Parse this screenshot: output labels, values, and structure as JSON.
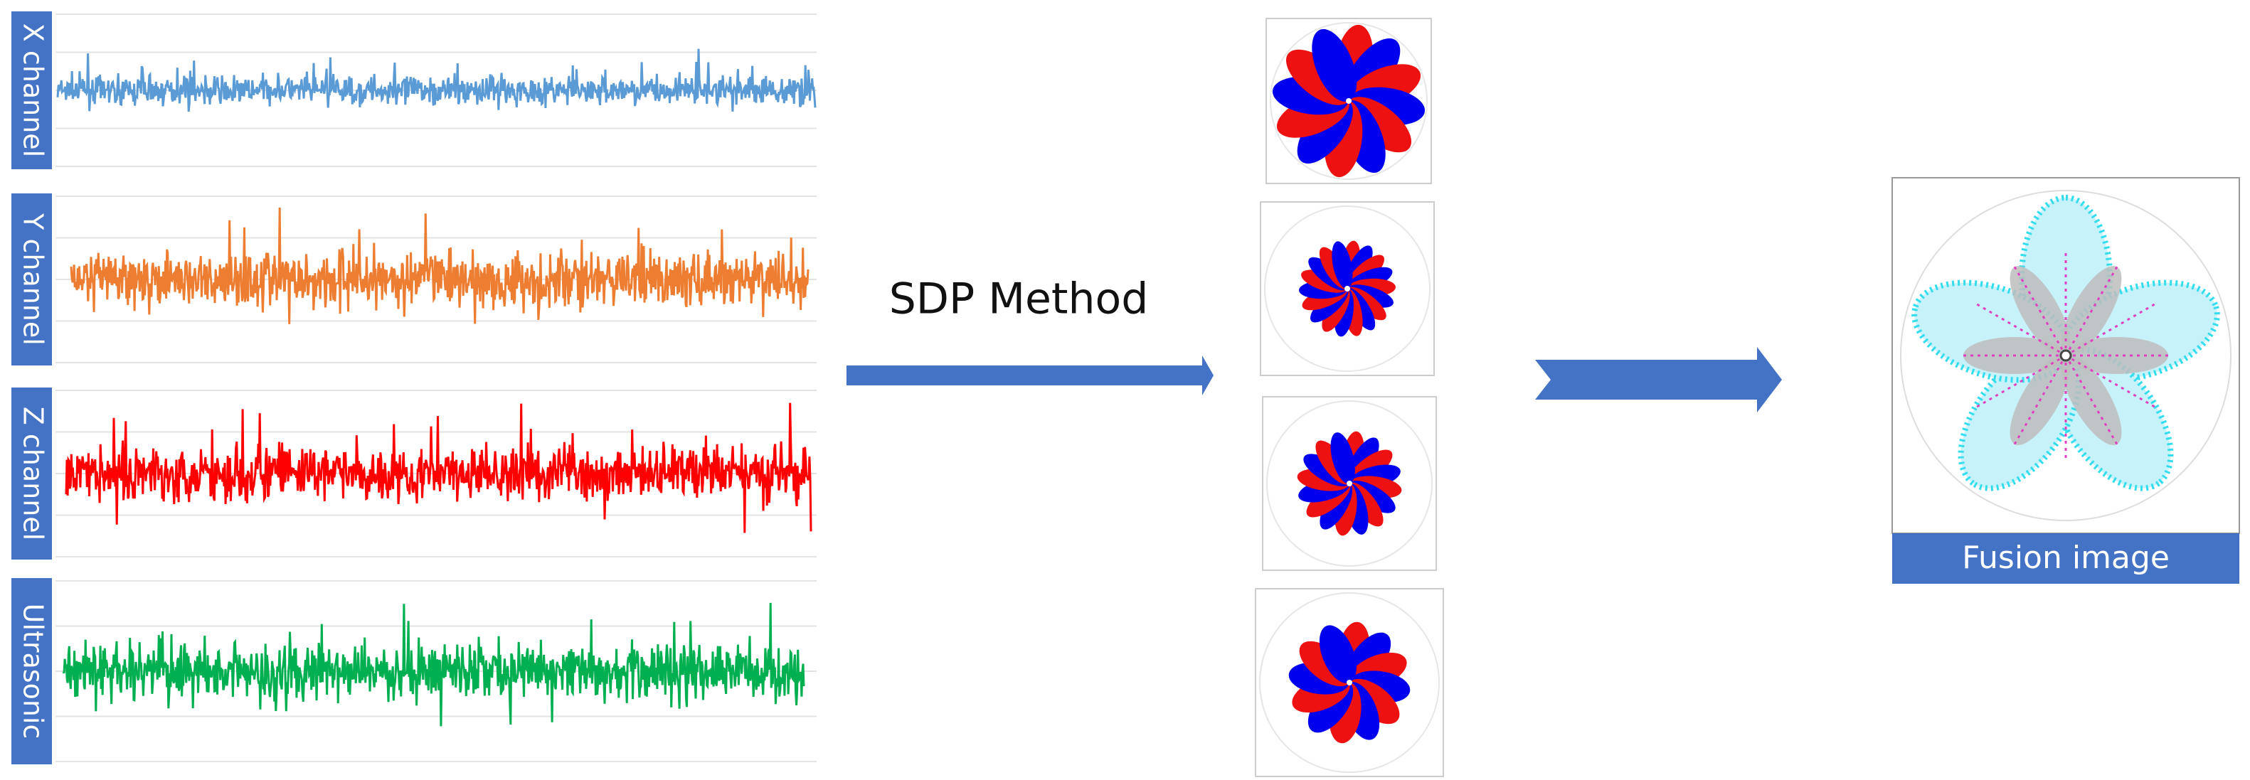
{
  "signals": [
    {
      "label": "X channel"
    },
    {
      "label": "Y channel"
    },
    {
      "label": "Z channel"
    },
    {
      "label": "Ultrasonic"
    }
  ],
  "method": {
    "label": "SDP Method"
  },
  "fusion": {
    "label": "Fusion image"
  }
}
